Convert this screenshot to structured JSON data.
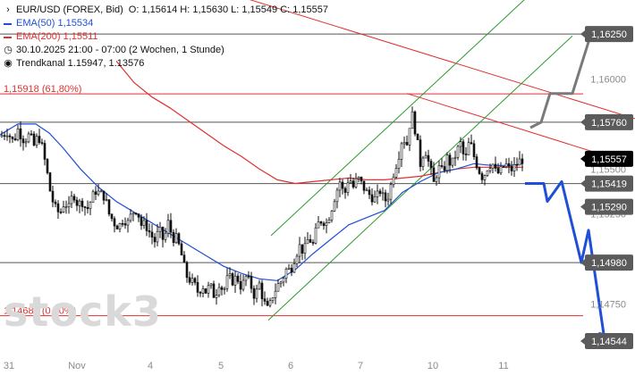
{
  "header": {
    "instrument": "EUR/USD (FOREX, Bid)",
    "ohlc": "O: 1,15614  H: 1,15630  L: 1,15549  C: 1,15557",
    "ema50": "EMA(50)  1,15534",
    "ema200": "EMA(200)  1,15511",
    "period": "30.10.2025 21:00 - 07:00   (2 Wochen, 1 Stunde)",
    "trendchannel": "Trendkanal  1.15947, 1.13576"
  },
  "watermark": "stock3",
  "colors": {
    "ema50": "#1f4fd6",
    "ema200": "#e03030",
    "candle": "#111111",
    "channel": "#2e9a2e",
    "resistance": "#e03030",
    "level": "#555555",
    "forecast_up": "#7a7a7a",
    "forecast_down": "#1f4fd6",
    "tag_gray": "#5b5b5b",
    "tag_black": "#000000"
  },
  "chart_data": {
    "type": "candlestick",
    "title": "EUR/USD (FOREX, Bid)",
    "timeframe": "1 Stunde",
    "ylim": [
      1.1441,
      1.1637
    ],
    "y_ticks": [
      "1,16000",
      "1,15500",
      "1,15250",
      "1,14750"
    ],
    "x_ticks": [
      "31",
      "Nov",
      "4",
      "5",
      "6",
      "7",
      "10",
      "11"
    ],
    "last_price": "1,15557",
    "price_tags": [
      {
        "label": "1,16250",
        "style": "gray"
      },
      {
        "label": "1,15760",
        "style": "gray"
      },
      {
        "label": "1,15557",
        "style": "black"
      },
      {
        "label": "1,15419",
        "style": "gray"
      },
      {
        "label": "1,15290",
        "style": "gray"
      },
      {
        "label": "1,14980",
        "style": "gray"
      },
      {
        "label": "1,14544",
        "style": "gray"
      }
    ],
    "horizontal_levels": [
      {
        "value": 1.1625,
        "label": ""
      },
      {
        "value": 1.15918,
        "label": "1,15918 (61,80%)"
      },
      {
        "value": 1.1576,
        "label": ""
      },
      {
        "value": 1.15419,
        "label": ""
      },
      {
        "value": 1.1498,
        "label": ""
      },
      {
        "value": 1.14685,
        "label": "1,14685 (0,00%)"
      }
    ],
    "level_labels": [
      {
        "text": "1,15918 (61,80%)"
      },
      {
        "text": "1,14685 (0,00%)"
      }
    ],
    "price_path": [
      [
        0,
        1.1568
      ],
      [
        8,
        1.1571
      ],
      [
        15,
        1.1565
      ],
      [
        20,
        1.1572
      ],
      [
        27,
        1.1566
      ],
      [
        33,
        1.1569
      ],
      [
        38,
        1.1563
      ],
      [
        43,
        1.1569
      ],
      [
        47,
        1.1562
      ],
      [
        52,
        1.155
      ],
      [
        57,
        1.1535
      ],
      [
        62,
        1.1528
      ],
      [
        67,
        1.1525
      ],
      [
        72,
        1.1532
      ],
      [
        77,
        1.1528
      ],
      [
        82,
        1.1537
      ],
      [
        87,
        1.153
      ],
      [
        92,
        1.1532
      ],
      [
        97,
        1.1527
      ],
      [
        102,
        1.1533
      ],
      [
        107,
        1.1538
      ],
      [
        112,
        1.1536
      ],
      [
        117,
        1.1535
      ],
      [
        122,
        1.1525
      ],
      [
        128,
        1.152
      ],
      [
        133,
        1.1518
      ],
      [
        138,
        1.1523
      ],
      [
        143,
        1.152
      ],
      [
        148,
        1.1526
      ],
      [
        153,
        1.1528
      ],
      [
        158,
        1.1519
      ],
      [
        163,
        1.1519
      ],
      [
        168,
        1.1514
      ],
      [
        173,
        1.151
      ],
      [
        178,
        1.1516
      ],
      [
        183,
        1.151
      ],
      [
        188,
        1.152
      ],
      [
        193,
        1.1512
      ],
      [
        198,
        1.1511
      ],
      [
        203,
        1.1502
      ],
      [
        208,
        1.1491
      ],
      [
        213,
        1.1488
      ],
      [
        218,
        1.1485
      ],
      [
        222,
        1.1481
      ],
      [
        226,
        1.1486
      ],
      [
        230,
        1.1482
      ],
      [
        235,
        1.1485
      ],
      [
        240,
        1.1479
      ],
      [
        245,
        1.1487
      ],
      [
        250,
        1.1482
      ],
      [
        255,
        1.149
      ],
      [
        260,
        1.1488
      ],
      [
        265,
        1.149
      ],
      [
        270,
        1.1484
      ],
      [
        275,
        1.149
      ],
      [
        280,
        1.1486
      ],
      [
        285,
        1.1479
      ],
      [
        290,
        1.1486
      ],
      [
        295,
        1.1476
      ],
      [
        300,
        1.1471
      ],
      [
        305,
        1.148
      ],
      [
        310,
        1.1485
      ],
      [
        315,
        1.1488
      ],
      [
        320,
        1.1494
      ],
      [
        325,
        1.1494
      ],
      [
        330,
        1.1502
      ],
      [
        335,
        1.1507
      ],
      [
        340,
        1.1504
      ],
      [
        345,
        1.1512
      ],
      [
        350,
        1.1508
      ],
      [
        355,
        1.1519
      ],
      [
        360,
        1.1522
      ],
      [
        365,
        1.152
      ],
      [
        370,
        1.1527
      ],
      [
        375,
        1.1536
      ],
      [
        380,
        1.1543
      ],
      [
        385,
        1.1535
      ],
      [
        390,
        1.1546
      ],
      [
        395,
        1.154
      ],
      [
        400,
        1.1545
      ],
      [
        405,
        1.1541
      ],
      [
        410,
        1.1537
      ],
      [
        415,
        1.1535
      ],
      [
        420,
        1.1533
      ],
      [
        425,
        1.1538
      ],
      [
        430,
        1.1532
      ],
      [
        435,
        1.1536
      ],
      [
        440,
        1.1548
      ],
      [
        445,
        1.1556
      ],
      [
        450,
        1.1568
      ],
      [
        455,
        1.1564
      ],
      [
        460,
        1.1582
      ],
      [
        465,
        1.157
      ],
      [
        470,
        1.1553
      ],
      [
        475,
        1.1562
      ],
      [
        480,
        1.1552
      ],
      [
        485,
        1.1542
      ],
      [
        490,
        1.1551
      ],
      [
        495,
        1.1548
      ],
      [
        500,
        1.1556
      ],
      [
        505,
        1.1552
      ],
      [
        510,
        1.1559
      ],
      [
        515,
        1.1564
      ],
      [
        520,
        1.1554
      ],
      [
        525,
        1.1566
      ],
      [
        530,
        1.1557
      ],
      [
        535,
        1.155
      ],
      [
        540,
        1.1545
      ],
      [
        545,
        1.1551
      ],
      [
        550,
        1.1554
      ],
      [
        555,
        1.1547
      ],
      [
        560,
        1.1549
      ],
      [
        565,
        1.1553
      ],
      [
        570,
        1.1549
      ],
      [
        575,
        1.1551
      ],
      [
        580,
        1.1554
      ],
      [
        585,
        1.1556
      ]
    ],
    "ema50_path": [
      [
        0,
        1.1569
      ],
      [
        20,
        1.1575
      ],
      [
        40,
        1.1575
      ],
      [
        55,
        1.157
      ],
      [
        70,
        1.1562
      ],
      [
        90,
        1.155
      ],
      [
        110,
        1.154
      ],
      [
        130,
        1.1532
      ],
      [
        150,
        1.1526
      ],
      [
        170,
        1.152
      ],
      [
        190,
        1.1514
      ],
      [
        210,
        1.1508
      ],
      [
        230,
        1.1502
      ],
      [
        250,
        1.1496
      ],
      [
        270,
        1.1492
      ],
      [
        290,
        1.1489
      ],
      [
        310,
        1.1488
      ],
      [
        330,
        1.1494
      ],
      [
        350,
        1.1503
      ],
      [
        370,
        1.1511
      ],
      [
        390,
        1.1519
      ],
      [
        410,
        1.1523
      ],
      [
        430,
        1.1527
      ],
      [
        450,
        1.1537
      ],
      [
        470,
        1.1543
      ],
      [
        490,
        1.1548
      ],
      [
        510,
        1.155
      ],
      [
        530,
        1.1553
      ],
      [
        550,
        1.1552
      ],
      [
        570,
        1.1552
      ],
      [
        585,
        1.1553
      ]
    ],
    "ema200_path": [
      [
        130,
        1.161
      ],
      [
        150,
        1.1598
      ],
      [
        170,
        1.159
      ],
      [
        190,
        1.1584
      ],
      [
        210,
        1.1577
      ],
      [
        230,
        1.157
      ],
      [
        250,
        1.1563
      ],
      [
        270,
        1.1557
      ],
      [
        290,
        1.155
      ],
      [
        310,
        1.1544
      ],
      [
        330,
        1.1542
      ],
      [
        350,
        1.1543
      ],
      [
        370,
        1.1544
      ],
      [
        390,
        1.1545
      ],
      [
        410,
        1.1544
      ],
      [
        430,
        1.1544
      ],
      [
        450,
        1.1545
      ],
      [
        470,
        1.1546
      ],
      [
        490,
        1.1548
      ],
      [
        510,
        1.155
      ],
      [
        530,
        1.1551
      ],
      [
        550,
        1.1551
      ],
      [
        570,
        1.1551
      ],
      [
        585,
        1.1551
      ]
    ],
    "trend_lines": [
      {
        "name": "resistance",
        "from": [
          150,
          1.1664
        ],
        "to": [
          710,
          1.1578
        ]
      },
      {
        "name": "resistance-2",
        "from": [
          455,
          1.1592
        ],
        "to": [
          680,
          1.1557
        ]
      },
      {
        "name": "channel-top",
        "from": [
          303,
          1.1513
        ],
        "to": [
          612,
          1.1656
        ]
      },
      {
        "name": "channel-bottom",
        "from": [
          300,
          1.1466
        ],
        "to": [
          640,
          1.1624
        ]
      }
    ],
    "forecast_up": [
      [
        593,
        1.1573
      ],
      [
        605,
        1.1576
      ],
      [
        615,
        1.1592
      ],
      [
        640,
        1.1592
      ],
      [
        662,
        1.1627
      ]
    ],
    "forecast_down": [
      [
        587,
        1.1542
      ],
      [
        608,
        1.1542
      ],
      [
        612,
        1.1532
      ],
      [
        628,
        1.1543
      ],
      [
        650,
        1.1498
      ],
      [
        658,
        1.1516
      ],
      [
        676,
        1.1455
      ]
    ]
  }
}
